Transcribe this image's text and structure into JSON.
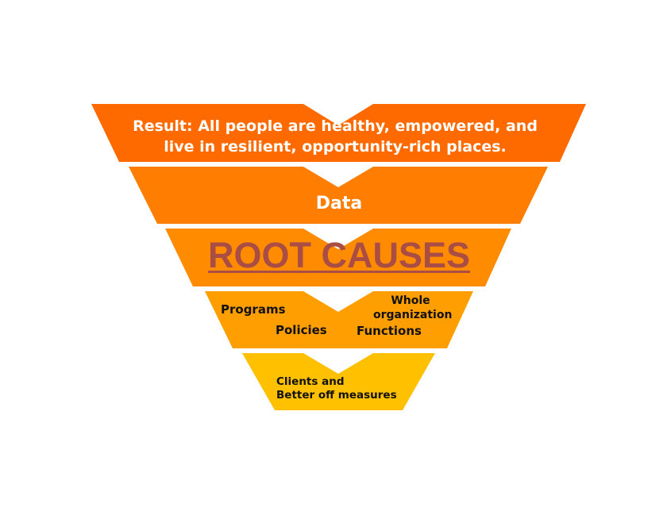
{
  "levels": {
    "result": {
      "line1": "Result: All people are healthy, empowered, and",
      "line2": "live in resilient, opportunity-rich places."
    },
    "data": "Data",
    "root_causes": "ROOT CAUSES",
    "strategies": {
      "programs": "Programs",
      "policies": "Policies",
      "functions": "Functions",
      "whole_line1": "Whole",
      "whole_line2": "organization"
    },
    "clients": {
      "line1": "Clients and",
      "line2": "Better off measures"
    }
  },
  "colors": {
    "band1": "#ff6a00",
    "band2": "#ff7d00",
    "band3": "#ff8c00",
    "band4": "#ff9e00",
    "band5": "#ffc000",
    "root_text": "#a94d45",
    "chevron": "#ffffff"
  }
}
